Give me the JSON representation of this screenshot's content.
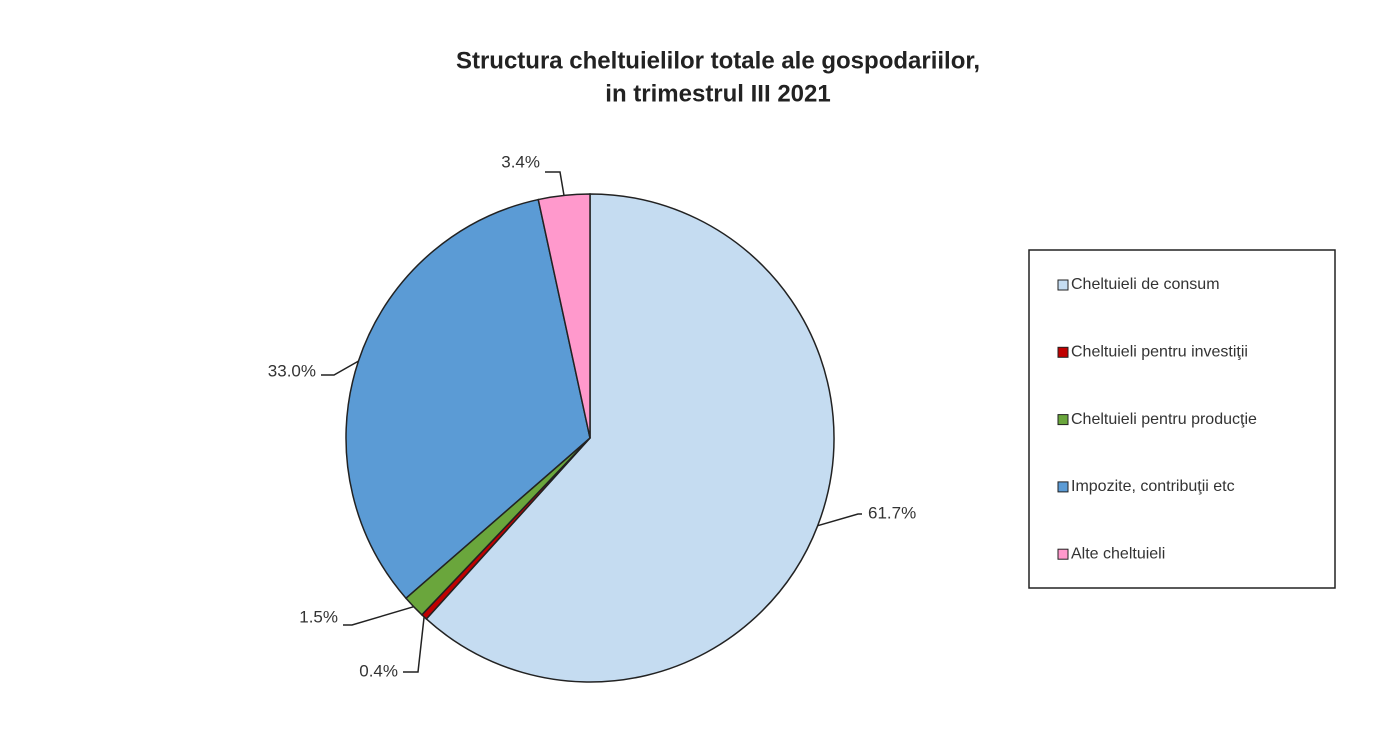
{
  "chart_data": {
    "type": "pie",
    "title": [
      "Structura cheltuielilor totale ale gospodariilor,",
      "in trimestrul III 2021"
    ],
    "categories": [
      "Cheltuieli de consum",
      "Cheltuieli pentru investiţii",
      "Cheltuieli pentru producţie",
      "Impozite, contribuţii etc",
      "Alte cheltuieli"
    ],
    "values": [
      61.7,
      0.4,
      1.5,
      33.0,
      3.4
    ],
    "value_labels": [
      "61.7%",
      "0.4%",
      "1.5%",
      "33.0%",
      "3.4%"
    ],
    "colors": [
      "#c5dcf1",
      "#c00000",
      "#6aa63c",
      "#5b9bd5",
      "#ff99cc"
    ],
    "legend": "right"
  }
}
